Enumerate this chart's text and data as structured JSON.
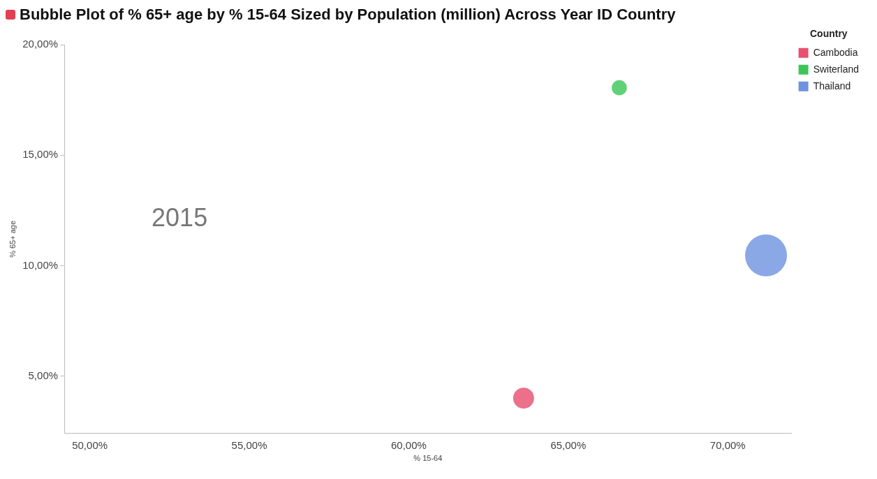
{
  "chart_data": {
    "type": "bubble",
    "title": "Bubble Plot of % 65+ age by % 15-64 Sized by Population (million) Across Year ID Country",
    "xlabel": "% 15-64",
    "ylabel": "% 65+ age",
    "legend_title": "Country",
    "legend": "top right",
    "grid": false,
    "annotations": [
      "2015"
    ],
    "xlim": [
      49.2,
      72.0
    ],
    "xticks": [
      {
        "value": 50,
        "label": "50,00%"
      },
      {
        "value": 55,
        "label": "55,00%"
      },
      {
        "value": 60,
        "label": "60,00%"
      },
      {
        "value": 65,
        "label": "65,00%"
      },
      {
        "value": 70,
        "label": "70,00%"
      }
    ],
    "ylim": [
      2.4,
      20
    ],
    "yticks": [
      {
        "value": 5,
        "label": "5,00%"
      },
      {
        "value": 10,
        "label": "10,00%"
      },
      {
        "value": 15,
        "label": "15,00%"
      },
      {
        "value": 20,
        "label": "20,00%"
      }
    ],
    "series": [
      {
        "name": "Cambodia",
        "color": "#e8506e",
        "x": [
          63.6
        ],
        "values": [
          4.0
        ],
        "sizes": [
          0.25
        ]
      },
      {
        "name": "Switerland",
        "color": "#3cc65a",
        "x": [
          66.6
        ],
        "values": [
          18.05
        ],
        "sizes": [
          0.13
        ]
      },
      {
        "name": "Thailand",
        "color": "#6f93e0",
        "x": [
          71.2
        ],
        "values": [
          10.46
        ],
        "sizes": [
          1
        ]
      }
    ]
  }
}
